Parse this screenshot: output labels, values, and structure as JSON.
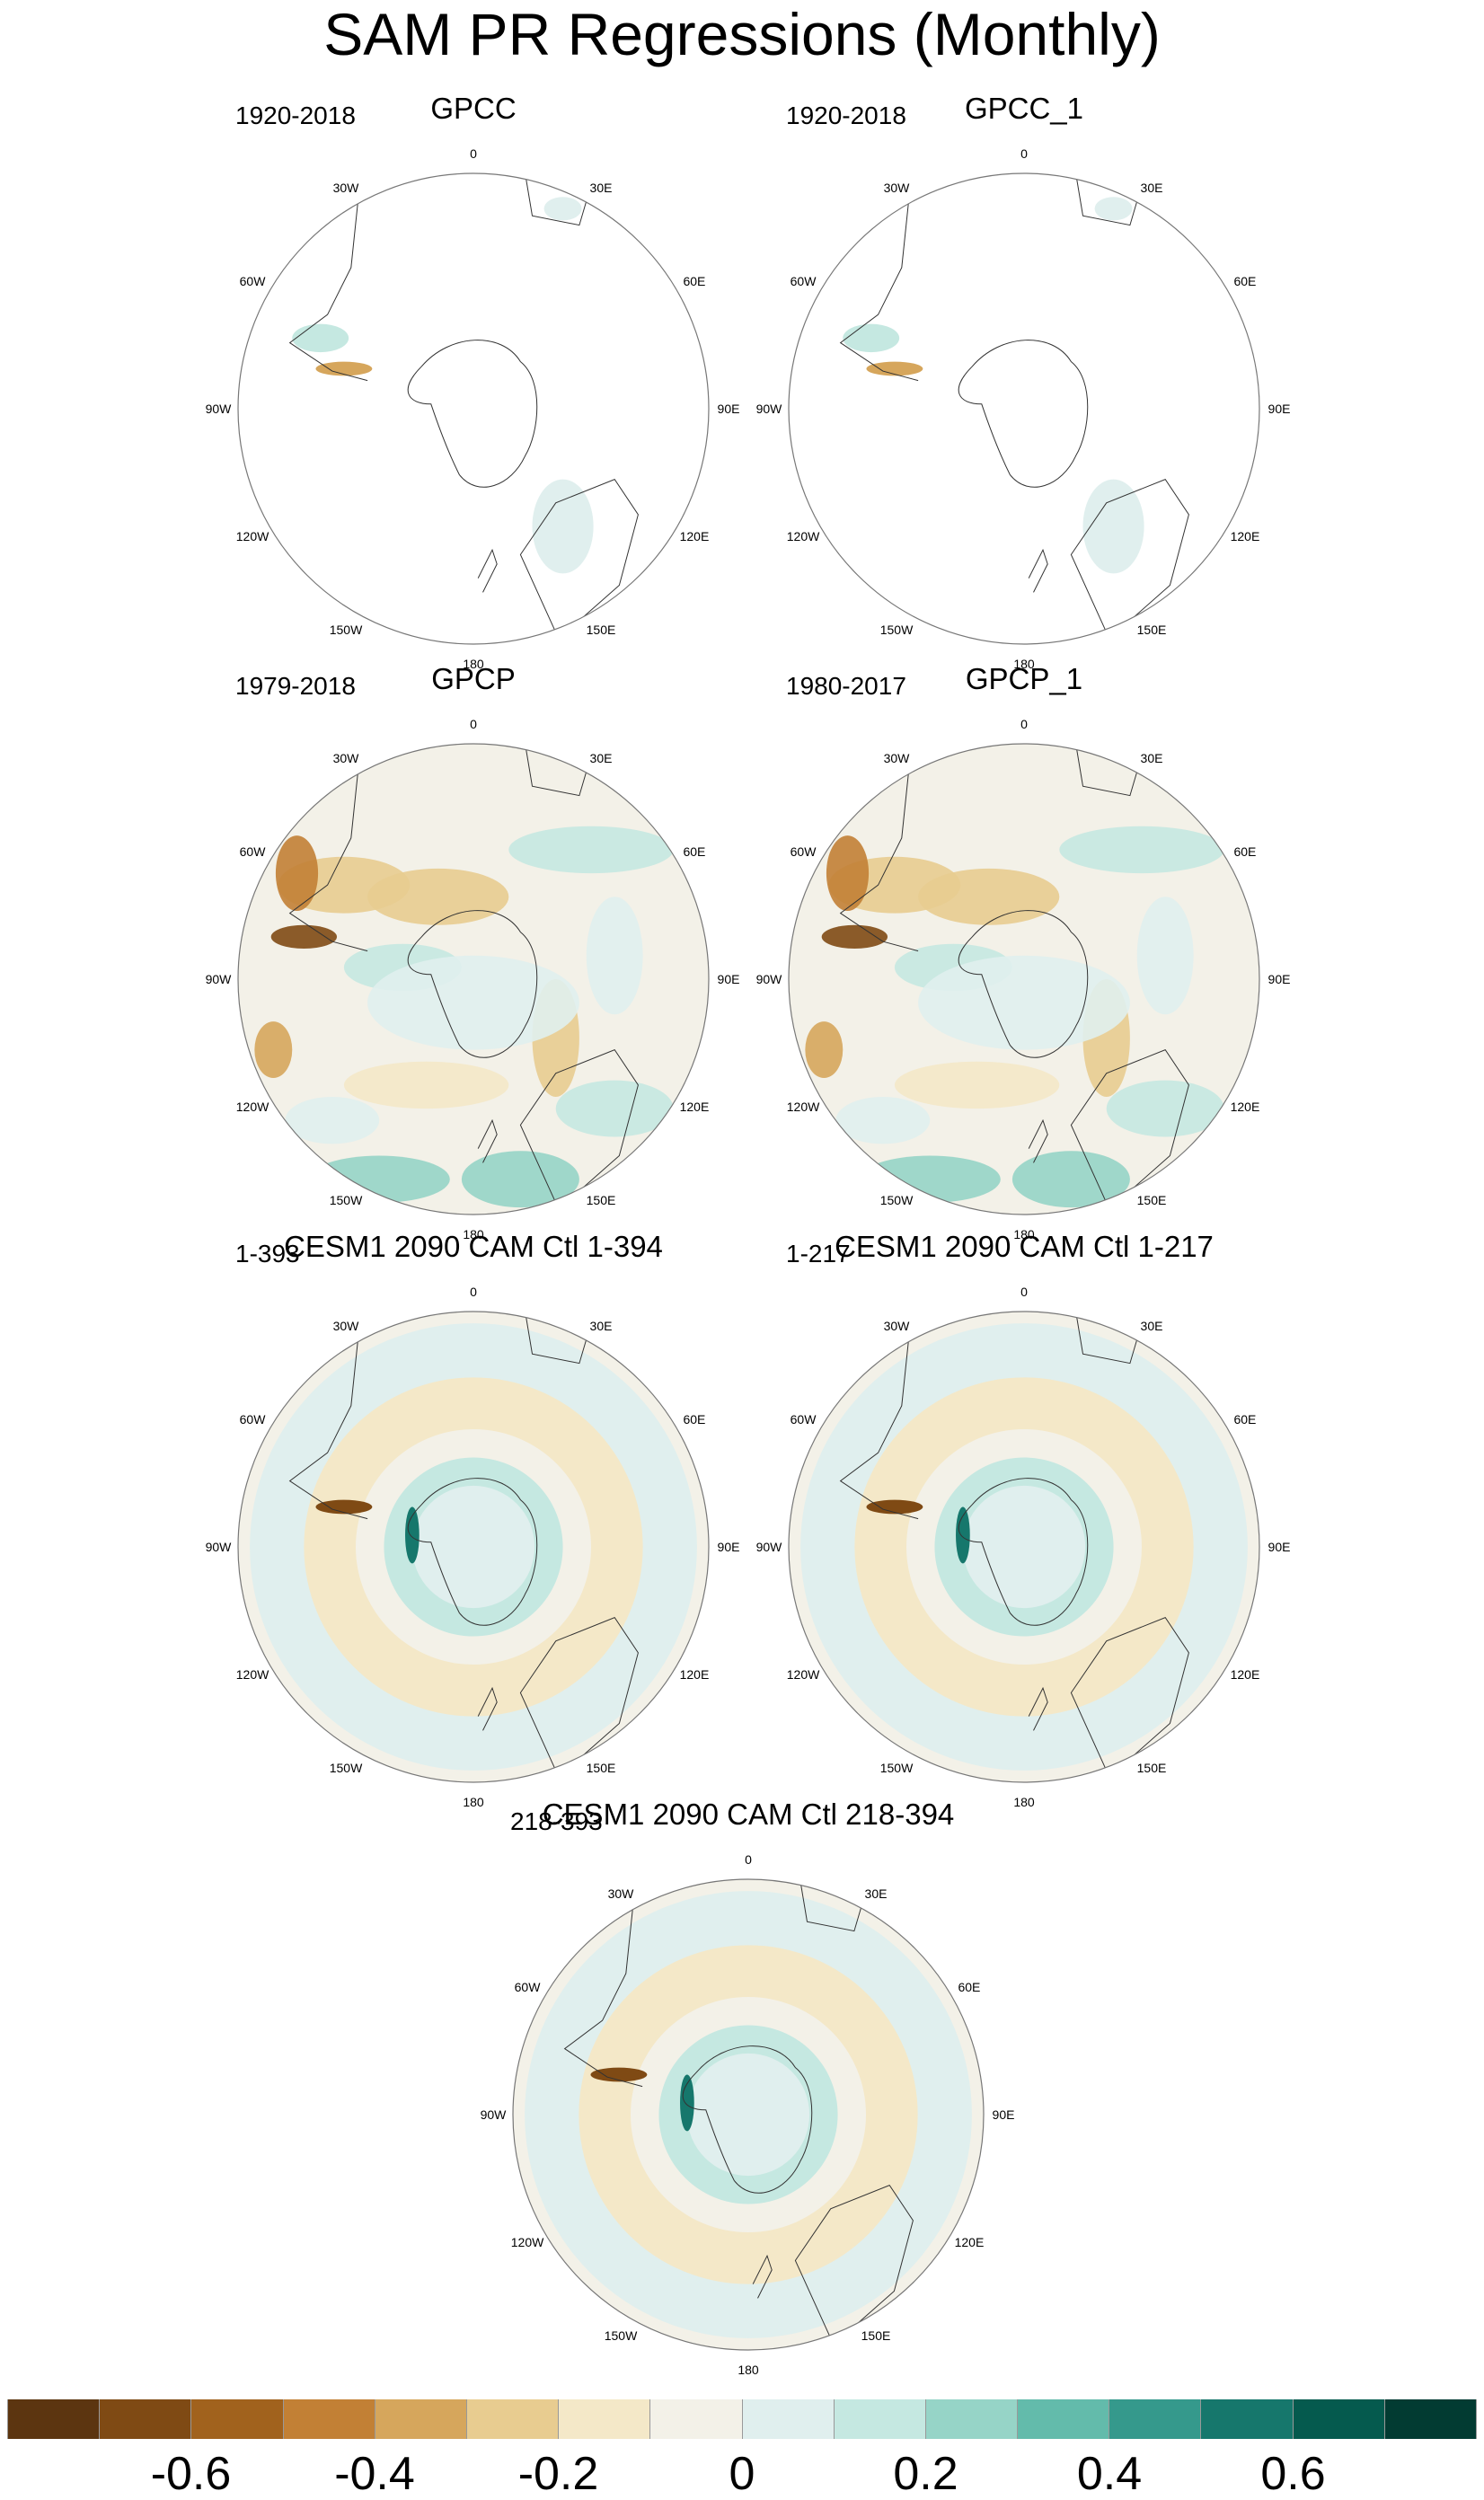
{
  "title": "SAM PR Regressions (Monthly)",
  "panels": [
    {
      "name": "GPCC",
      "period": "1920-2018",
      "field": "land-only"
    },
    {
      "name": "GPCC_1",
      "period": "1920-2018",
      "field": "land-only"
    },
    {
      "name": "GPCP",
      "period": "1979-2018",
      "field": "full"
    },
    {
      "name": "GPCP_1",
      "period": "1980-2017",
      "field": "full"
    },
    {
      "name": "CESM1 2090 CAM Ctl 1-394",
      "period": "1-393",
      "field": "model"
    },
    {
      "name": "CESM1 2090 CAM Ctl 1-217",
      "period": "1-217",
      "field": "model"
    },
    {
      "name": "CESM1 2090 CAM Ctl 218-394",
      "period": "218-393",
      "field": "model"
    }
  ],
  "longitude_labels": [
    "0",
    "30E",
    "60E",
    "90E",
    "120E",
    "150E",
    "180",
    "150W",
    "120W",
    "90W",
    "60W",
    "30W"
  ],
  "colorbar": {
    "colors": [
      "#5c3510",
      "#7f4a14",
      "#a1621d",
      "#c28035",
      "#d6a65c",
      "#e8cc90",
      "#f4e8c8",
      "#f3f1e8",
      "#e0efee",
      "#c5e8e1",
      "#96d4c7",
      "#63bbab",
      "#35998c",
      "#16776c",
      "#055a4e",
      "#023b32"
    ],
    "tick_labels": [
      "-0.6",
      "-0.4",
      "-0.2",
      "0",
      "0.2",
      "0.4",
      "0.6"
    ]
  }
}
